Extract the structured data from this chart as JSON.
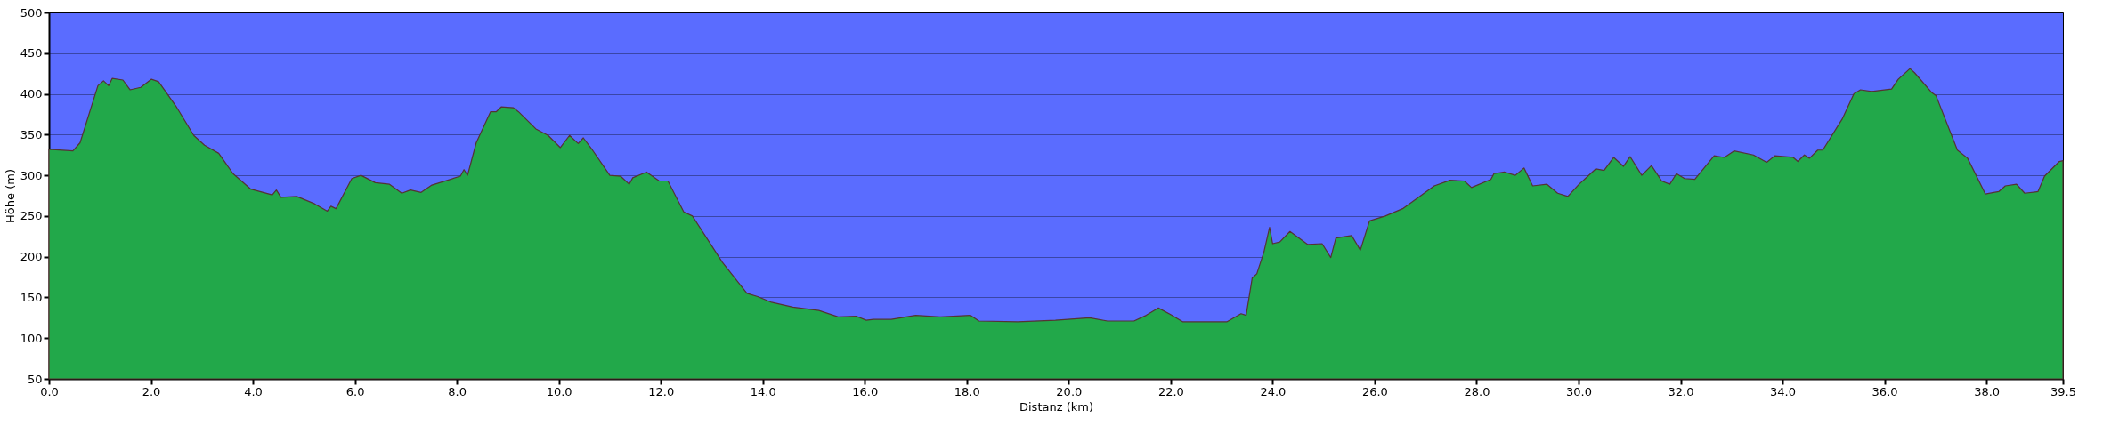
{
  "chart_data": {
    "type": "area",
    "xlabel": "Distanz (km)",
    "ylabel": "Höhe (m)",
    "xlim": [
      0,
      39.5
    ],
    "ylim": [
      50,
      500
    ],
    "xticks": [
      {
        "value": 0,
        "label": "0.0"
      },
      {
        "value": 2,
        "label": "2.0"
      },
      {
        "value": 4,
        "label": "4.0"
      },
      {
        "value": 6,
        "label": "6.0"
      },
      {
        "value": 8,
        "label": "8.0"
      },
      {
        "value": 10,
        "label": "10.0"
      },
      {
        "value": 12,
        "label": "12.0"
      },
      {
        "value": 14,
        "label": "14.0"
      },
      {
        "value": 16,
        "label": "16.0"
      },
      {
        "value": 18,
        "label": "18.0"
      },
      {
        "value": 20,
        "label": "20.0"
      },
      {
        "value": 22,
        "label": "22.0"
      },
      {
        "value": 24,
        "label": "24.0"
      },
      {
        "value": 26,
        "label": "26.0"
      },
      {
        "value": 28,
        "label": "28.0"
      },
      {
        "value": 30,
        "label": "30.0"
      },
      {
        "value": 32,
        "label": "32.0"
      },
      {
        "value": 34,
        "label": "34.0"
      },
      {
        "value": 36,
        "label": "36.0"
      },
      {
        "value": 38,
        "label": "38.0"
      },
      39.5
    ],
    "yticks": [
      50,
      100,
      150,
      200,
      250,
      300,
      350,
      400,
      450,
      500
    ],
    "grid": "y",
    "x": [
      0,
      0.47,
      0.61,
      0.96,
      1.07,
      1.17,
      1.24,
      1.45,
      1.59,
      1.8,
      2.01,
      2.15,
      2.49,
      2.84,
      3.05,
      3.33,
      3.61,
      3.96,
      4.38,
      4.46,
      4.55,
      4.86,
      5.21,
      5.46,
      5.53,
      5.63,
      5.94,
      6.12,
      6.4,
      6.68,
      6.92,
      7.09,
      7.3,
      7.51,
      8.07,
      8.14,
      8.21,
      8.38,
      8.66,
      8.77,
      8.87,
      9.11,
      9.21,
      9.55,
      9.79,
      10.03,
      10.21,
      10.38,
      10.48,
      10.66,
      11.0,
      11.21,
      11.38,
      11.45,
      11.72,
      11.97,
      12.14,
      12.45,
      12.62,
      13.21,
      13.69,
      13.9,
      14.17,
      14.59,
      15.1,
      15.48,
      15.83,
      16.03,
      16.17,
      16.52,
      17.0,
      17.48,
      18.07,
      18.24,
      19.0,
      19.74,
      20.41,
      20.76,
      21.28,
      21.52,
      21.76,
      22.0,
      22.24,
      23.1,
      23.38,
      23.48,
      23.6,
      23.69,
      23.83,
      23.94,
      24.0,
      24.14,
      24.34,
      24.69,
      24.97,
      25.14,
      25.24,
      25.55,
      25.72,
      25.9,
      26.21,
      26.55,
      27.17,
      27.48,
      27.76,
      27.9,
      28.28,
      28.34,
      28.55,
      28.76,
      28.93,
      29.1,
      29.38,
      29.59,
      29.79,
      30.01,
      30.34,
      30.5,
      30.69,
      30.88,
      31.01,
      31.24,
      31.43,
      31.63,
      31.79,
      31.92,
      32.08,
      32.28,
      32.66,
      32.86,
      33.05,
      33.43,
      33.69,
      33.85,
      34.21,
      34.3,
      34.43,
      34.53,
      34.69,
      34.79,
      35.17,
      35.4,
      35.53,
      35.75,
      36.14,
      36.27,
      36.5,
      36.59,
      36.92,
      37.01,
      37.43,
      37.63,
      37.98,
      38.24,
      38.37,
      38.59,
      38.75,
      39.01,
      39.14,
      39.43,
      39.5
    ],
    "series": [
      {
        "color": "#22a84a",
        "values": [
          332,
          330,
          340,
          410,
          416,
          410,
          419,
          417,
          405,
          408,
          418,
          415,
          385,
          349,
          337,
          327,
          302,
          283,
          276,
          282,
          273,
          274,
          265,
          256,
          262,
          259,
          296,
          300,
          291,
          289,
          278,
          282,
          279,
          288,
          299,
          307,
          300,
          340,
          378,
          378,
          384,
          383,
          378,
          357,
          349,
          334,
          349,
          339,
          346,
          331,
          300,
          299,
          289,
          297,
          304,
          293,
          293,
          255,
          250,
          193,
          155,
          151,
          144,
          138,
          134,
          126,
          127,
          122,
          123,
          123,
          128,
          126,
          128,
          121,
          120,
          122,
          125,
          121,
          121,
          128,
          137,
          129,
          120,
          120,
          130,
          128,
          174,
          179,
          206,
          236,
          216,
          218,
          231,
          215,
          216,
          199,
          223,
          226,
          208,
          244,
          250,
          259,
          287,
          294,
          293,
          285,
          295,
          302,
          304,
          300,
          309,
          287,
          289,
          278,
          274,
          289,
          308,
          306,
          322,
          311,
          323,
          300,
          312,
          293,
          289,
          302,
          296,
          295,
          324,
          322,
          330,
          325,
          316,
          324,
          322,
          317,
          325,
          321,
          331,
          331,
          369,
          400,
          405,
          403,
          406,
          418,
          431,
          426,
          402,
          398,
          331,
          321,
          277,
          280,
          287,
          289,
          278,
          280,
          299,
          317,
          318
        ]
      }
    ]
  }
}
